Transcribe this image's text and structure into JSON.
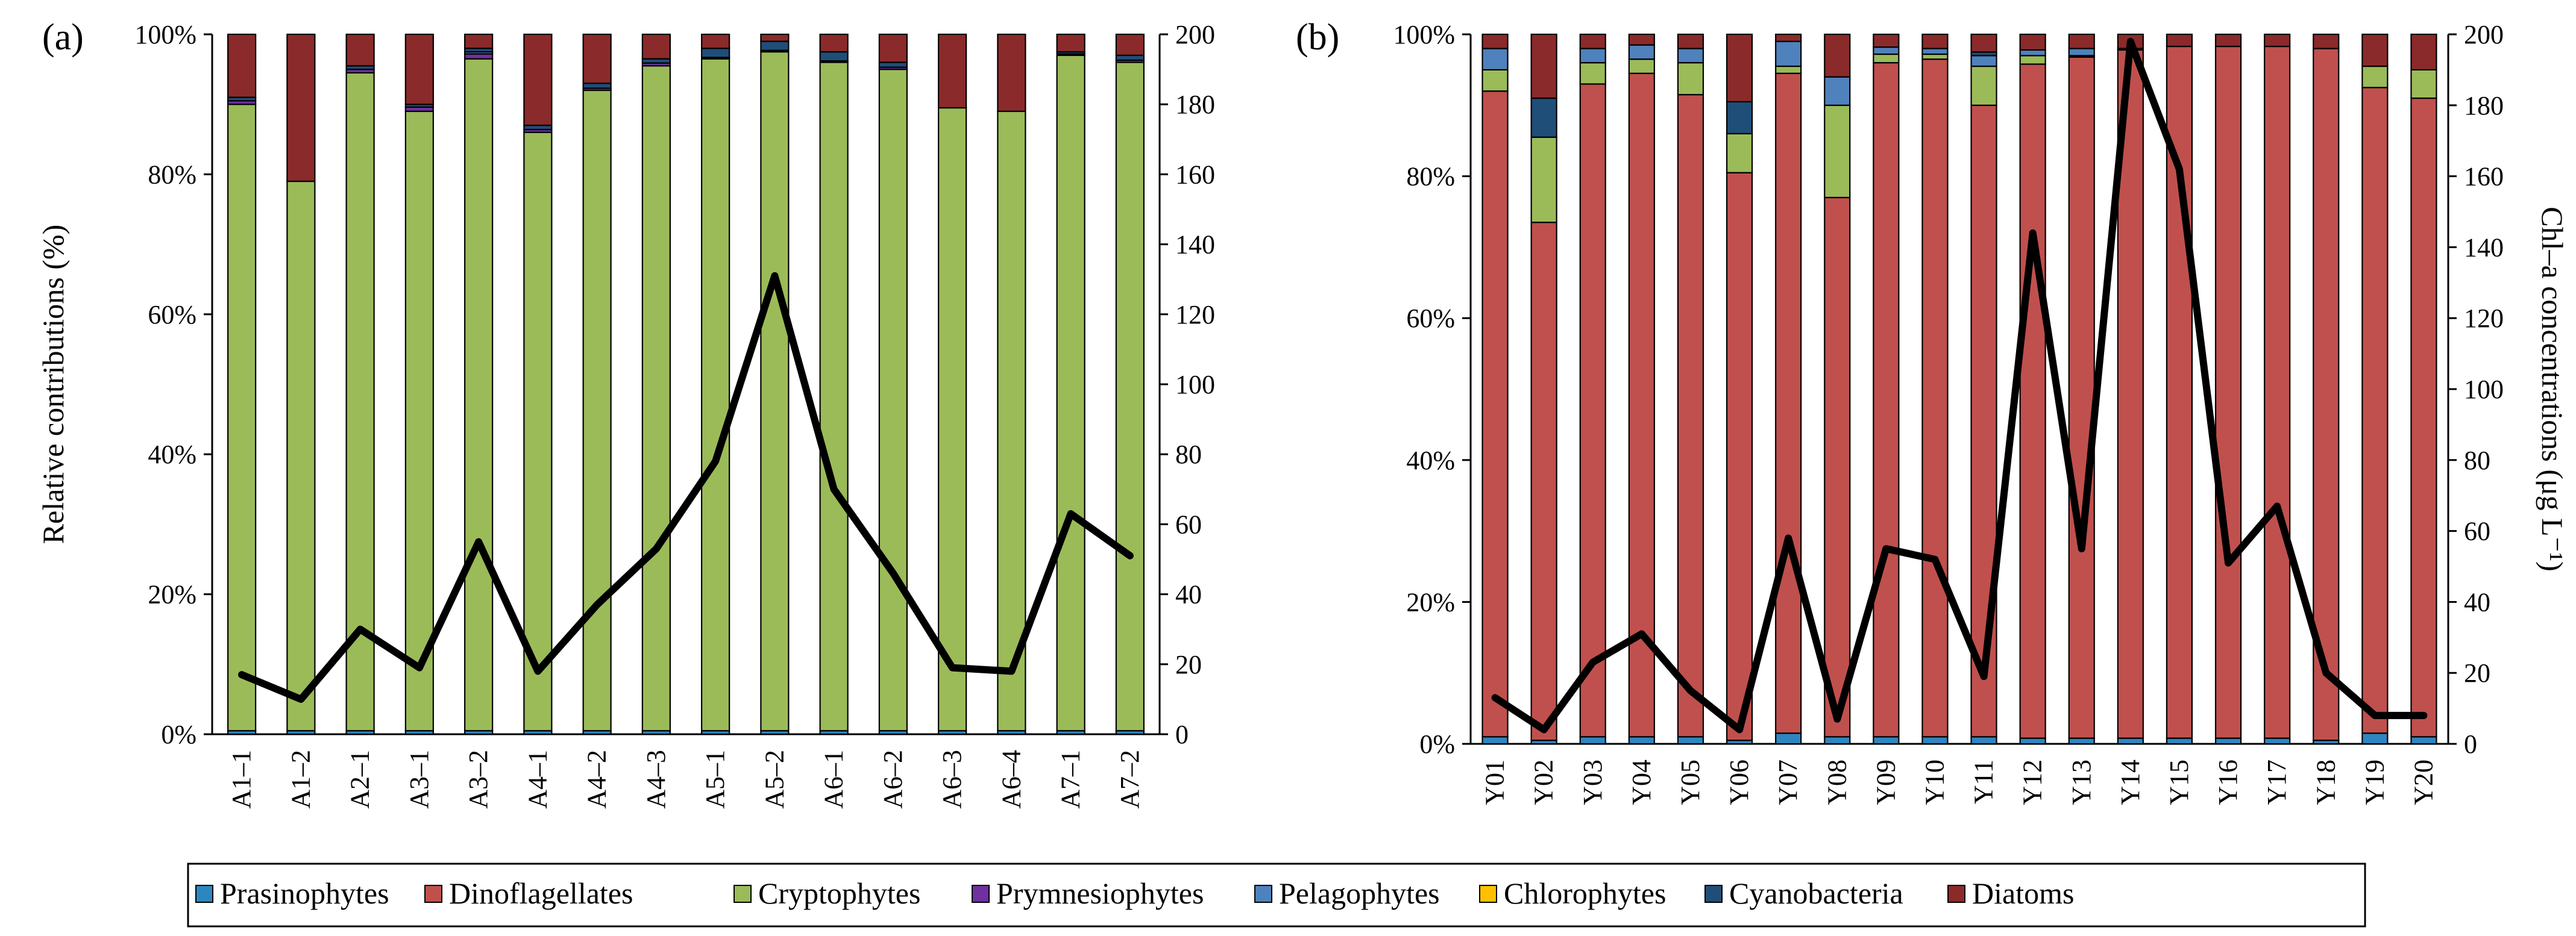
{
  "legend": [
    {
      "name": "Prasinophytes",
      "color": "#2E86C1"
    },
    {
      "name": "Dinoflagellates",
      "color": "#C0504D"
    },
    {
      "name": "Cryptophytes",
      "color": "#9BBB59"
    },
    {
      "name": "Prymnesiophytes",
      "color": "#7030A0"
    },
    {
      "name": "Pelagophytes",
      "color": "#4F81BD"
    },
    {
      "name": "Chlorophytes",
      "color": "#FFC000"
    },
    {
      "name": "Cyanobacteria",
      "color": "#1F4E79"
    },
    {
      "name": "Diatoms",
      "color": "#8B2A2A"
    }
  ],
  "chart_data": [
    {
      "panel": "(a)",
      "type": "bar",
      "stacked": true,
      "ylabel": "Relative contributions (%)",
      "y2label": "",
      "ylim": [
        0,
        100
      ],
      "y2lim": [
        0,
        200
      ],
      "yticks": [
        "0%",
        "20%",
        "40%",
        "60%",
        "80%",
        "100%"
      ],
      "y2ticks": [
        "0",
        "20",
        "40",
        "60",
        "80",
        "100",
        "120",
        "140",
        "160",
        "180",
        "200"
      ],
      "categories": [
        "A1–1",
        "A1–2",
        "A2–1",
        "A3–1",
        "A3–2",
        "A4–1",
        "A4–2",
        "A4–3",
        "A5–1",
        "A5–2",
        "A6–1",
        "A6–2",
        "A6–3",
        "A6–4",
        "A7–1",
        "A7–2"
      ],
      "series": [
        {
          "name": "Prasinophytes",
          "values": [
            0.5,
            0.5,
            0.5,
            0.5,
            0.5,
            0.5,
            0.5,
            0.5,
            0.5,
            0.5,
            0.5,
            0.5,
            0.5,
            0.5,
            0.5,
            0.5
          ]
        },
        {
          "name": "Dinoflagellates",
          "values": [
            0,
            0,
            0,
            0,
            0,
            0,
            0,
            0,
            0,
            0,
            0,
            0,
            0,
            0,
            0,
            0
          ]
        },
        {
          "name": "Cryptophytes",
          "values": [
            89.5,
            78.5,
            94,
            88.5,
            96,
            85.5,
            91.5,
            95,
            96,
            97,
            95.5,
            94.5,
            89,
            88.5,
            96.5,
            95.5
          ]
        },
        {
          "name": "Prymnesiophytes",
          "values": [
            0.5,
            0,
            0.5,
            0.6,
            0.7,
            0.4,
            0.3,
            0.4,
            0.2,
            0.2,
            0.2,
            0.3,
            0,
            0,
            0.2,
            0.3
          ]
        },
        {
          "name": "Pelagophytes",
          "values": [
            0,
            0,
            0,
            0,
            0.3,
            0,
            0,
            0,
            0,
            0,
            0,
            0,
            0,
            0,
            0,
            0
          ]
        },
        {
          "name": "Chlorophytes",
          "values": [
            0,
            0,
            0,
            0,
            0,
            0,
            0,
            0,
            0,
            0,
            0,
            0,
            0,
            0,
            0,
            0
          ]
        },
        {
          "name": "Cyanobacteria",
          "values": [
            0.5,
            0,
            0.5,
            0.4,
            0.5,
            0.6,
            0.7,
            0.6,
            1.3,
            1.3,
            1.3,
            0.7,
            0,
            0,
            0.3,
            0.7
          ]
        },
        {
          "name": "Diatoms",
          "values": [
            9,
            21,
            4.5,
            10,
            2,
            13,
            7,
            3.5,
            2,
            1,
            2.5,
            4,
            10.5,
            11,
            2.5,
            3
          ]
        }
      ],
      "line": {
        "axis": "right",
        "values": [
          17,
          10,
          30,
          19,
          55,
          18,
          37,
          53,
          78,
          131,
          70,
          46,
          19,
          18,
          63,
          51
        ]
      }
    },
    {
      "panel": "(b)",
      "type": "bar",
      "stacked": true,
      "ylabel": "",
      "y2label": "Chl–a concentrations (μg L⁻¹)",
      "ylim": [
        0,
        100
      ],
      "y2lim": [
        0,
        200
      ],
      "yticks": [
        "0%",
        "20%",
        "40%",
        "60%",
        "80%",
        "100%"
      ],
      "y2ticks": [
        "0",
        "20",
        "40",
        "60",
        "80",
        "100",
        "120",
        "140",
        "160",
        "180",
        "200"
      ],
      "categories": [
        "Y01",
        "Y02",
        "Y03",
        "Y04",
        "Y05",
        "Y06",
        "Y07",
        "Y08",
        "Y09",
        "Y10",
        "Y11",
        "Y12",
        "Y13",
        "Y14",
        "Y15",
        "Y16",
        "Y17",
        "Y18",
        "Y19",
        "Y20"
      ],
      "series": [
        {
          "name": "Prasinophytes",
          "values": [
            1,
            0.5,
            1,
            1,
            1,
            0.5,
            1.5,
            1,
            1,
            1,
            1,
            0.8,
            0.8,
            0.8,
            0.8,
            0.8,
            0.8,
            0.5,
            1.5,
            1
          ]
        },
        {
          "name": "Dinoflagellates",
          "values": [
            91,
            73,
            92,
            93.5,
            90.5,
            80,
            93,
            76,
            95,
            95.5,
            89,
            95,
            96,
            97,
            97.5,
            97.5,
            97.5,
            97.5,
            91,
            90
          ]
        },
        {
          "name": "Cryptophytes",
          "values": [
            3,
            12,
            3,
            2,
            4.5,
            5.5,
            1,
            13,
            1.2,
            0.7,
            5.5,
            1.2,
            0.2,
            0.2,
            0,
            0,
            0,
            0,
            3,
            4
          ]
        },
        {
          "name": "Prymnesiophytes",
          "values": [
            0,
            0,
            0,
            0,
            0,
            0,
            0,
            0,
            0,
            0,
            0,
            0,
            0,
            0,
            0,
            0,
            0,
            0,
            0,
            0
          ]
        },
        {
          "name": "Pelagophytes",
          "values": [
            3,
            0,
            2,
            2,
            2,
            0,
            3.5,
            4,
            1,
            0.8,
            1.5,
            0.8,
            1,
            0,
            0,
            0,
            0,
            0,
            0,
            0
          ]
        },
        {
          "name": "Chlorophytes",
          "values": [
            0,
            0,
            0,
            0,
            0,
            0,
            0,
            0,
            0,
            0,
            0,
            0,
            0,
            0,
            0,
            0,
            0,
            0,
            0,
            0
          ]
        },
        {
          "name": "Cyanobacteria",
          "values": [
            0,
            5.5,
            0,
            0,
            0,
            4.5,
            0,
            0,
            0,
            0,
            0.5,
            0,
            0,
            0,
            0,
            0,
            0,
            0,
            0,
            0
          ]
        },
        {
          "name": "Diatoms",
          "values": [
            2,
            9,
            2,
            1.5,
            2,
            9.5,
            1,
            6,
            1.8,
            2,
            2.5,
            2.2,
            2,
            2,
            1.7,
            1.7,
            1.7,
            2,
            4.5,
            5
          ]
        }
      ],
      "line": {
        "axis": "right",
        "values": [
          13,
          4,
          23,
          31,
          15,
          4,
          58,
          7,
          55,
          52,
          19,
          144,
          55,
          198,
          162,
          51,
          67,
          20,
          8,
          8
        ]
      }
    }
  ]
}
